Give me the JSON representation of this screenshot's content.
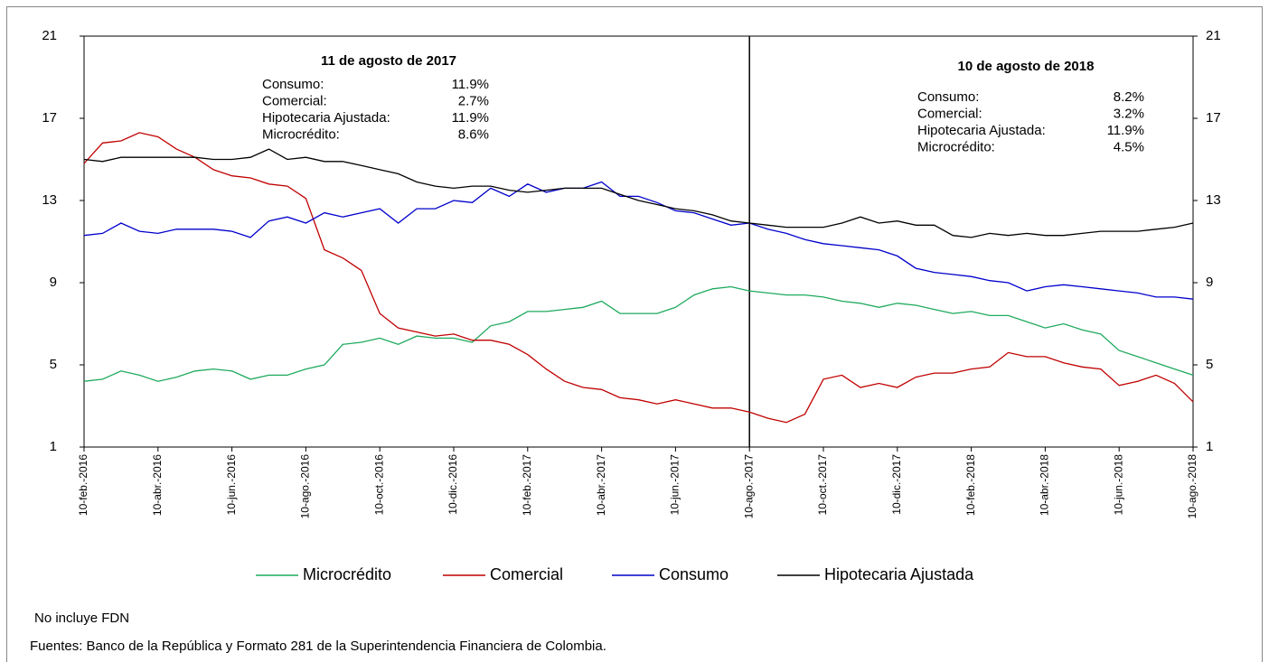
{
  "chart_data": {
    "type": "line",
    "categories": [
      "10-feb.-2016",
      null,
      null,
      null,
      "10-abr.-2016",
      null,
      null,
      null,
      "10-jun.-2016",
      null,
      null,
      null,
      "10-ago.-2016",
      null,
      null,
      null,
      "10-oct.-2016",
      null,
      null,
      null,
      "10-dic.-2016",
      null,
      null,
      null,
      "10-feb.-2017",
      null,
      null,
      null,
      "10-abr.-2017",
      null,
      null,
      null,
      "10-jun.-2017",
      null,
      null,
      null,
      "10-ago.-2017",
      null,
      null,
      null,
      "10-oct.-2017",
      null,
      null,
      null,
      "10-dic.-2017",
      null,
      null,
      null,
      "10-feb.-2018",
      null,
      null,
      null,
      "10-abr.-2018",
      null,
      null,
      null,
      "10-jun.-2018",
      null,
      null,
      null,
      "10-ago.-2018"
    ],
    "series": [
      {
        "name": "Microcrédito",
        "color": "#1faa5e",
        "values": [
          4.2,
          4.3,
          4.7,
          4.5,
          4.2,
          4.4,
          4.7,
          4.8,
          4.7,
          4.3,
          4.5,
          4.5,
          4.8,
          5.0,
          6.0,
          6.1,
          6.3,
          6.0,
          6.4,
          6.3,
          6.3,
          6.1,
          6.9,
          7.1,
          7.6,
          7.6,
          7.7,
          7.8,
          8.1,
          7.5,
          7.5,
          7.5,
          7.8,
          8.4,
          8.7,
          8.8,
          8.6,
          8.5,
          8.4,
          8.4,
          8.3,
          8.1,
          8.0,
          7.8,
          8.0,
          7.9,
          7.7,
          7.5,
          7.6,
          7.4,
          7.4,
          7.1,
          6.8,
          7.0,
          6.7,
          6.5,
          5.7,
          5.4,
          5.1,
          4.8,
          4.5
        ]
      },
      {
        "name": "Comercial",
        "color": "#c00000",
        "values": [
          14.8,
          15.8,
          15.9,
          16.3,
          16.1,
          15.5,
          15.1,
          14.5,
          14.2,
          14.1,
          13.8,
          13.7,
          13.1,
          10.6,
          10.2,
          9.6,
          7.5,
          6.8,
          6.6,
          6.4,
          6.5,
          6.2,
          6.2,
          6.0,
          5.5,
          4.8,
          4.2,
          3.9,
          3.8,
          3.4,
          3.3,
          3.1,
          3.3,
          3.1,
          2.9,
          2.9,
          2.7,
          2.4,
          2.2,
          2.6,
          4.3,
          4.5,
          3.9,
          4.1,
          3.9,
          4.4,
          4.6,
          4.6,
          4.8,
          4.9,
          5.6,
          5.4,
          5.4,
          5.1,
          4.9,
          4.8,
          4.0,
          4.2,
          4.5,
          4.1,
          3.2
        ]
      },
      {
        "name": "Consumo",
        "color": "#0000cc",
        "values": [
          11.3,
          11.4,
          11.9,
          11.5,
          11.4,
          11.6,
          11.6,
          11.6,
          11.5,
          11.2,
          12.0,
          12.2,
          11.9,
          12.4,
          12.2,
          12.4,
          12.6,
          11.9,
          12.6,
          12.6,
          13.0,
          12.9,
          13.6,
          13.2,
          13.8,
          13.4,
          13.6,
          13.6,
          13.9,
          13.2,
          13.2,
          12.9,
          12.5,
          12.4,
          12.1,
          11.8,
          11.9,
          11.6,
          11.4,
          11.1,
          10.9,
          10.8,
          10.7,
          10.6,
          10.3,
          9.7,
          9.5,
          9.4,
          9.3,
          9.1,
          9.0,
          8.6,
          8.8,
          8.9,
          8.8,
          8.7,
          8.6,
          8.5,
          8.3,
          8.3,
          8.2
        ]
      },
      {
        "name": "Hipotecaria Ajustada",
        "color": "#000000",
        "values": [
          15.0,
          14.9,
          15.1,
          15.1,
          15.1,
          15.1,
          15.1,
          15.0,
          15.0,
          15.1,
          15.5,
          15.0,
          15.1,
          14.9,
          14.9,
          14.7,
          14.5,
          14.3,
          13.9,
          13.7,
          13.6,
          13.7,
          13.7,
          13.5,
          13.4,
          13.5,
          13.6,
          13.6,
          13.6,
          13.3,
          13.0,
          12.8,
          12.6,
          12.5,
          12.3,
          12.0,
          11.9,
          11.8,
          11.7,
          11.7,
          11.7,
          11.9,
          12.2,
          11.9,
          12.0,
          11.8,
          11.8,
          11.3,
          11.2,
          11.4,
          11.3,
          11.4,
          11.3,
          11.3,
          11.4,
          11.5,
          11.5,
          11.5,
          11.6,
          11.7,
          11.9
        ]
      }
    ],
    "ylim": [
      1,
      21
    ],
    "yticks": [
      1,
      5,
      9,
      13,
      17,
      21
    ],
    "y2lim": [
      1,
      21
    ],
    "y2ticks": [
      1,
      5,
      9,
      13,
      17,
      21
    ],
    "reference_line": "10-ago.-2017",
    "annotations": [
      {
        "title": "11 de agosto de 2017",
        "items": [
          {
            "label": "Consumo:",
            "value": "11.9%"
          },
          {
            "label": "Comercial:",
            "value": "2.7%"
          },
          {
            "label": "Hipotecaria Ajustada:",
            "value": "11.9%"
          },
          {
            "label": "Microcrédito:",
            "value": "8.6%"
          }
        ]
      },
      {
        "title": "10 de agosto de 2018",
        "items": [
          {
            "label": "Consumo:",
            "value": "8.2%"
          },
          {
            "label": "Comercial:",
            "value": "3.2%"
          },
          {
            "label": "Hipotecaria Ajustada:",
            "value": "11.9%"
          },
          {
            "label": "Microcrédito:",
            "value": "4.5%"
          }
        ]
      }
    ],
    "notes": [
      "No incluye FDN",
      "Fuentes: Banco de la República y Formato 281 de la Superintendencia Financiera de Colombia."
    ]
  }
}
